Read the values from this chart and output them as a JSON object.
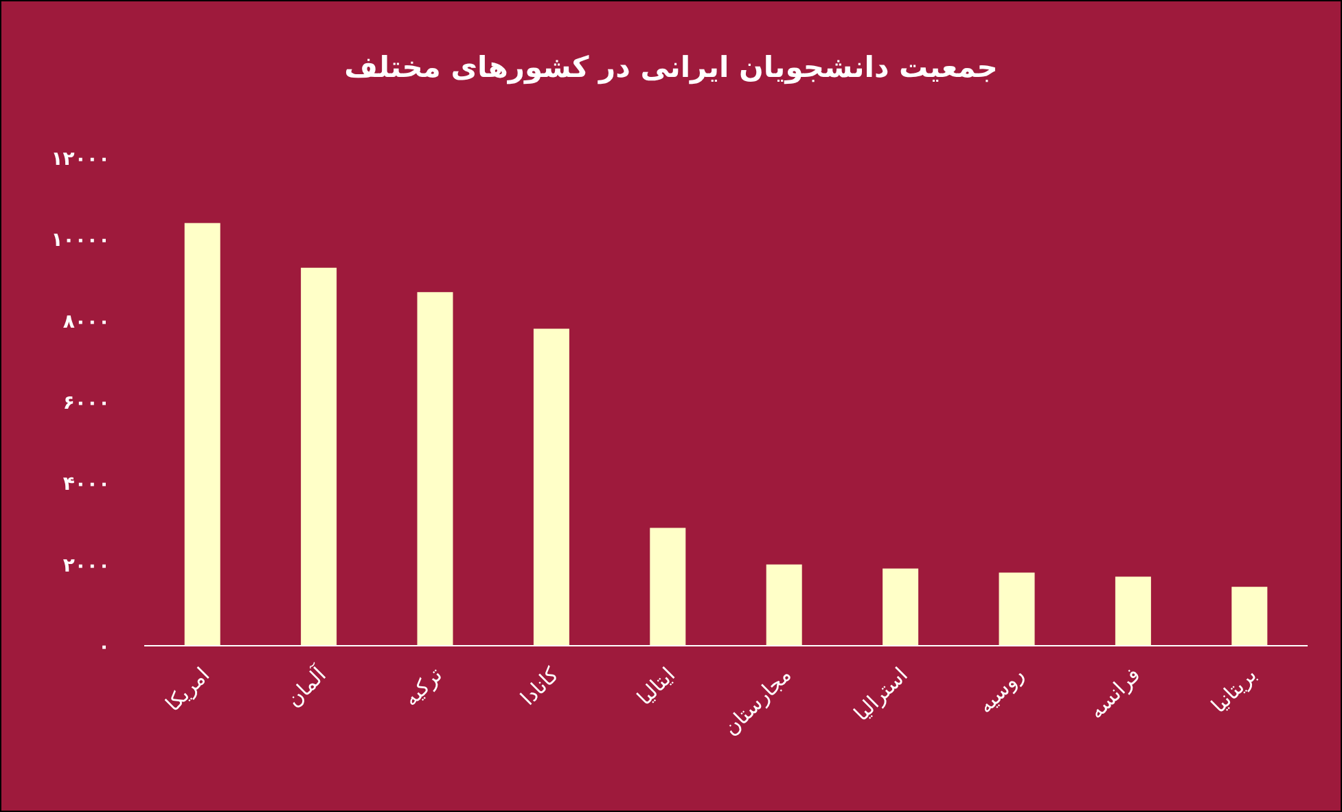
{
  "chart_data": {
    "type": "bar",
    "title": "جمعیت دانشجویان ایرانی در کشورهای مختلف",
    "categories": [
      "امریکا",
      "آلمان",
      "ترکیه",
      "کانادا",
      "ایتالیا",
      "مجارستان",
      "استرالیا",
      "روسیه",
      "فرانسه",
      "بریتانیا"
    ],
    "values": [
      10400,
      9300,
      8700,
      7800,
      2900,
      2000,
      1900,
      1800,
      1700,
      1450
    ],
    "color": "#ffffc8",
    "ylim": [
      0,
      12000
    ],
    "yticks": [
      {
        "value": 0,
        "label": "۰"
      },
      {
        "value": 2000,
        "label": "۲۰۰۰"
      },
      {
        "value": 4000,
        "label": "۴۰۰۰"
      },
      {
        "value": 6000,
        "label": "۶۰۰۰"
      },
      {
        "value": 8000,
        "label": "۸۰۰۰"
      },
      {
        "value": 10000,
        "label": "۱۰۰۰۰"
      },
      {
        "value": 12000,
        "label": "۱۲۰۰۰"
      }
    ],
    "grid": false
  }
}
